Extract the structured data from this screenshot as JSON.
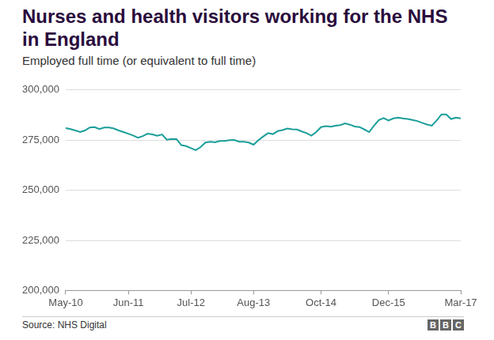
{
  "chart_data": {
    "type": "line",
    "title": "Nurses and health visitors working for the NHS in England",
    "subtitle": "Employed full time (or equivalent to full time)",
    "source": "Source: NHS Digital",
    "logo": "BBC",
    "categories": [
      "May-10",
      null,
      null,
      null,
      null,
      null,
      null,
      null,
      null,
      null,
      null,
      null,
      null,
      "Jun-11",
      null,
      null,
      null,
      null,
      null,
      null,
      null,
      null,
      null,
      null,
      null,
      null,
      "Jul-12",
      null,
      null,
      null,
      null,
      null,
      null,
      null,
      null,
      null,
      null,
      null,
      null,
      "Aug-13",
      null,
      null,
      null,
      null,
      null,
      null,
      null,
      null,
      null,
      null,
      null,
      null,
      null,
      "Oct-14",
      null,
      null,
      null,
      null,
      null,
      null,
      null,
      null,
      null,
      null,
      null,
      null,
      null,
      "Dec-15",
      null,
      null,
      null,
      null,
      null,
      null,
      null,
      null,
      null,
      null,
      null,
      null,
      null,
      null,
      "Mar-17"
    ],
    "values": [
      281000,
      280500,
      279800,
      279000,
      279800,
      281300,
      281500,
      280500,
      281300,
      281300,
      280800,
      279800,
      279000,
      278200,
      277300,
      276200,
      277000,
      278200,
      277800,
      277200,
      277800,
      275200,
      275600,
      275500,
      272500,
      272000,
      271000,
      270000,
      271500,
      273800,
      274200,
      273900,
      274600,
      274600,
      275000,
      275100,
      274200,
      274200,
      273800,
      272700,
      275000,
      276800,
      278500,
      278000,
      279500,
      280000,
      280800,
      280400,
      280300,
      279300,
      278500,
      277200,
      279000,
      281500,
      282000,
      281700,
      282200,
      282500,
      283300,
      282700,
      281800,
      281500,
      280300,
      279000,
      282200,
      285000,
      286000,
      284800,
      285800,
      286200,
      285800,
      285500,
      285000,
      284500,
      283600,
      282800,
      282200,
      284800,
      287800,
      287800,
      285500,
      286200,
      285800
    ],
    "color": "#1b9e9a",
    "ylim": [
      200000,
      300000
    ],
    "yticks": [
      {
        "value": 200000,
        "label": "200,000"
      },
      {
        "value": 225000,
        "label": "225,000"
      },
      {
        "value": 250000,
        "label": "250,000"
      },
      {
        "value": 275000,
        "label": "275,000"
      },
      {
        "value": 300000,
        "label": "300,000"
      }
    ],
    "grid": true
  }
}
